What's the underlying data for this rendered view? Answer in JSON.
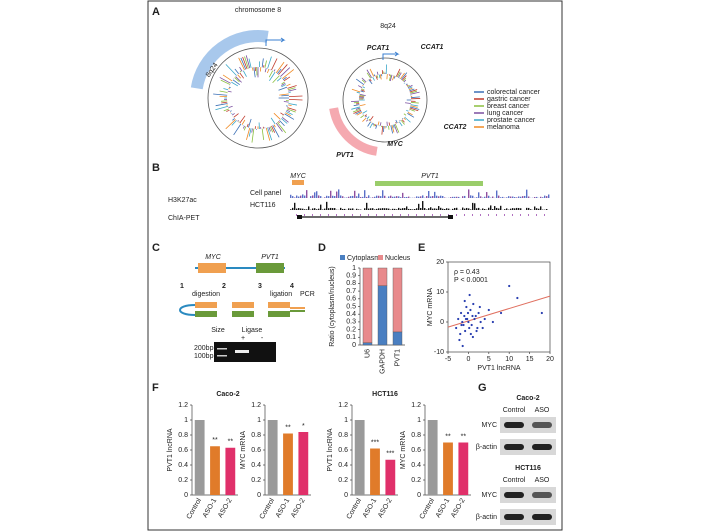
{
  "panels": {
    "A": {
      "label": "A",
      "left_title": "chromosome 8",
      "left_arc": "8q24",
      "right_title": "8q24",
      "genes": [
        "PCAT1",
        "CCAT1",
        "CCAT2",
        "PVT1",
        "MYC"
      ],
      "legend": [
        {
          "name": "colorectal cancer",
          "color": "#3a6fb5"
        },
        {
          "name": "gastric cancer",
          "color": "#c0392b"
        },
        {
          "name": "breast cancer",
          "color": "#8bbf3f"
        },
        {
          "name": "lung cancer",
          "color": "#7a4fa0"
        },
        {
          "name": "prostate cancer",
          "color": "#3aa7c9"
        },
        {
          "name": "melanoma",
          "color": "#f08a24"
        }
      ]
    },
    "B": {
      "label": "B",
      "genes": [
        "MYC",
        "PVT1"
      ],
      "tracks": [
        "H3K27ac",
        "Cell panel",
        "HCT116",
        "ChIA-PET"
      ]
    },
    "C": {
      "label": "C",
      "genes": [
        "MYC",
        "PVT1"
      ],
      "steps": [
        {
          "number": "1",
          "name": "digestion"
        },
        {
          "number": "2"
        },
        {
          "number": "3",
          "name": "ligation"
        },
        {
          "number": "4",
          "name": "PCR"
        }
      ],
      "gel": {
        "size": "Size",
        "ligase": "Ligase",
        "plus": "+",
        "minus": "-",
        "markers": [
          "200bp",
          "100bp"
        ]
      }
    },
    "D": {
      "label": "D",
      "ylabel": "Ratio (cytoplasm/nucleus)",
      "categories": [
        "U6",
        "GAPDH",
        "PVT1"
      ],
      "series": [
        {
          "name": "Cytoplasm",
          "color": "#4a7fc1",
          "values": [
            0.03,
            0.77,
            0.17
          ]
        },
        {
          "name": "Nucleus",
          "color": "#e88a8c",
          "values": [
            0.97,
            0.23,
            0.83
          ]
        }
      ],
      "ylim": [
        0,
        1
      ],
      "yticks": [
        0,
        0.1,
        0.2,
        0.3,
        0.4,
        0.5,
        0.6,
        0.7,
        0.8,
        0.9,
        1
      ]
    },
    "E": {
      "label": "E",
      "xlabel": "PVT1 lncRNA",
      "ylabel": "MYC mRNA",
      "stats": [
        "ρ = 0.43",
        "P < 0.0001"
      ],
      "x": [
        -3,
        -2.5,
        -2,
        -1.8,
        -1.5,
        -1.2,
        -1,
        -0.8,
        -0.5,
        -0.3,
        0,
        0.2,
        0.5,
        0.8,
        1,
        1.2,
        1.5,
        2,
        2.5,
        3,
        -2.2,
        -1.7,
        -0.9,
        -0.1,
        0.6,
        1.8,
        2.8,
        3.5,
        4,
        5,
        6,
        8,
        10,
        12,
        18,
        -1.4,
        0.3,
        1.1,
        -0.6,
        2.2
      ],
      "y": [
        -2,
        1,
        -4,
        3,
        0,
        -1,
        2,
        -3,
        5,
        1,
        0,
        -2,
        4,
        -1,
        2,
        6,
        1,
        -3,
        3,
        0,
        -6,
        -1,
        7,
        3,
        -4,
        2,
        5,
        -2,
        1,
        4,
        0,
        3,
        12,
        8,
        3,
        -8,
        9,
        -5,
        1,
        -2
      ],
      "point_color": "#2a3fb0",
      "fit_color": "#e07060",
      "xlim": [
        -5,
        20
      ],
      "xticks": [
        -5,
        0,
        5,
        10,
        15,
        20
      ],
      "ylim": [
        -10,
        20
      ],
      "yticks": [
        -10,
        0,
        10,
        20
      ]
    },
    "F": {
      "label": "F",
      "groups": [
        "Caco-2",
        "HCT116"
      ],
      "colors": [
        "#9a9a9a",
        "#e07b2a",
        "#e0306a"
      ],
      "ylim": [
        0,
        1.2
      ],
      "yticks": [
        0,
        0.2,
        0.4,
        0.6,
        0.8,
        1,
        1.2
      ],
      "charts": [
        {
          "ylabel": "PVT1 lncRNA",
          "categories": [
            "Control",
            "ASO-1",
            "ASO-2"
          ],
          "values": [
            1,
            0.65,
            0.63
          ],
          "significance": [
            null,
            "**",
            "**"
          ]
        },
        {
          "ylabel": "MYC mRNA",
          "categories": [
            "Control",
            "ASO-1",
            "ASO-2"
          ],
          "values": [
            1,
            0.82,
            0.84
          ],
          "significance": [
            null,
            "**",
            "*"
          ]
        },
        {
          "ylabel": "PVT1 lncRNA",
          "categories": [
            "Control",
            "ASO-1",
            "ASO-2"
          ],
          "values": [
            1,
            0.62,
            0.47
          ],
          "significance": [
            null,
            "***",
            "***"
          ]
        },
        {
          "ylabel": "MYC mRNA",
          "categories": [
            "Control",
            "ASO-1",
            "ASO-2"
          ],
          "values": [
            1,
            0.7,
            0.7
          ],
          "significance": [
            null,
            "**",
            "**"
          ]
        }
      ]
    },
    "G": {
      "label": "G",
      "blots": [
        {
          "cell": "Caco-2",
          "lanes": [
            "Control",
            "ASO"
          ],
          "proteins": [
            "MYC",
            "β-actin"
          ]
        },
        {
          "cell": "HCT116",
          "lanes": [
            "Control",
            "ASO"
          ],
          "proteins": [
            "MYC",
            "β-actin"
          ]
        }
      ]
    }
  }
}
